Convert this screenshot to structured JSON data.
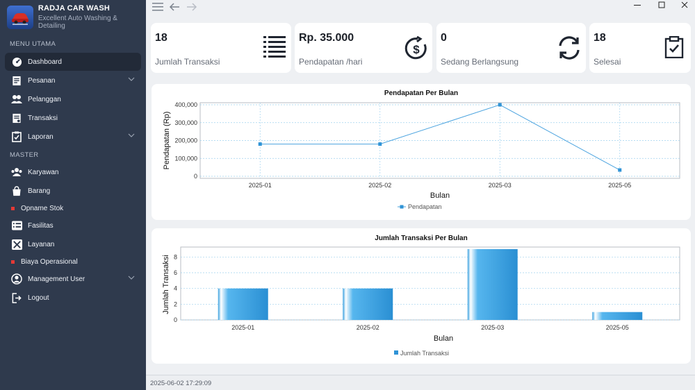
{
  "brand": {
    "title": "RADJA CAR WASH",
    "subtitle": "Excellent Auto Washing & Detailing"
  },
  "sidebar": {
    "section_main": "MENU UTAMA",
    "section_master": "MASTER",
    "items": [
      {
        "label": "Dashboard",
        "icon": "dashboard-icon"
      },
      {
        "label": "Pesanan",
        "icon": "order-icon"
      },
      {
        "label": "Pelanggan",
        "icon": "customers-icon"
      },
      {
        "label": "Transaksi",
        "icon": "transaction-icon"
      },
      {
        "label": "Laporan",
        "icon": "report-icon"
      },
      {
        "label": "Karyawan",
        "icon": "employee-icon"
      },
      {
        "label": "Barang",
        "icon": "goods-icon"
      },
      {
        "label": "Opname Stok",
        "icon": "red-dot"
      },
      {
        "label": "Fasilitas",
        "icon": "facility-icon"
      },
      {
        "label": "Layanan",
        "icon": "service-icon"
      },
      {
        "label": "Biaya Operasional",
        "icon": "red-dot"
      },
      {
        "label": "Management User",
        "icon": "user-icon"
      },
      {
        "label": "Logout",
        "icon": "logout-icon"
      }
    ]
  },
  "stats": [
    {
      "value": "18",
      "label": "Jumlah Transaksi",
      "icon": "list-icon"
    },
    {
      "value": "Rp. 35.000",
      "label": "Pendapatan /hari",
      "icon": "money-cycle-icon"
    },
    {
      "value": "0",
      "label": "Sedang Berlangsung",
      "icon": "sync-icon"
    },
    {
      "value": "18",
      "label": "Selesai",
      "icon": "clipboard-check-icon"
    }
  ],
  "chart_data": [
    {
      "type": "line",
      "title": "Pendapatan Per Bulan",
      "xlabel": "Bulan",
      "ylabel": "Pendapatan (Rp)",
      "categories": [
        "2025-01",
        "2025-02",
        "2025-03",
        "2025-05"
      ],
      "series": [
        {
          "name": "Pendapatan",
          "values": [
            180000,
            180000,
            400000,
            35000
          ]
        }
      ],
      "ylim": [
        0,
        400000
      ],
      "yticks": [
        "0",
        "100,000",
        "200,000",
        "300,000",
        "400,000"
      ],
      "grid": true,
      "legend": "bottom",
      "color": "#4aa3df"
    },
    {
      "type": "bar",
      "title": "Jumlah Transaksi Per Bulan",
      "xlabel": "Bulan",
      "ylabel": "Jumlah Transaksi",
      "categories": [
        "2025-01",
        "2025-02",
        "2025-03",
        "2025-05"
      ],
      "series": [
        {
          "name": "Jumlah Transaksi",
          "values": [
            4,
            4,
            9,
            1
          ]
        }
      ],
      "ylim": [
        0,
        9
      ],
      "yticks": [
        "0",
        "2",
        "4",
        "6",
        "8"
      ],
      "grid": true,
      "legend": "bottom",
      "color": "#2f93d6"
    }
  ],
  "status": {
    "timestamp": "2025-06-02 17:29:09"
  }
}
